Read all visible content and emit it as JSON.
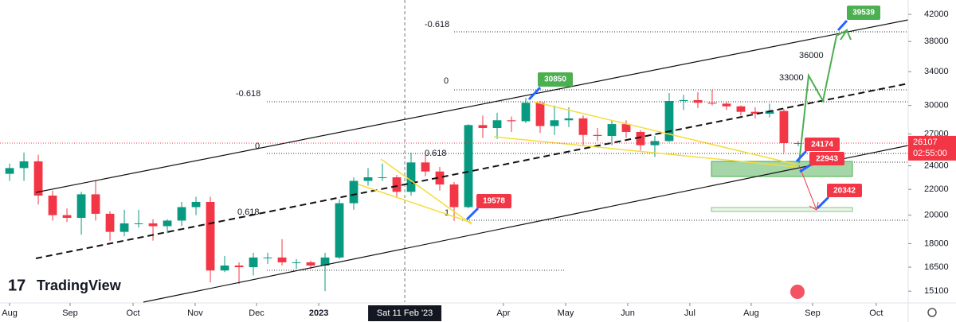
{
  "chart_data": {
    "type": "candlestick",
    "categories": [
      null,
      null,
      null,
      null,
      null,
      null,
      null,
      null,
      null,
      null,
      null,
      null,
      null,
      null,
      null,
      null,
      null,
      null,
      null,
      null,
      null,
      null,
      null,
      null,
      null,
      null,
      null,
      null,
      null,
      null,
      null,
      null,
      null,
      null,
      null,
      null,
      null,
      null,
      null,
      null,
      null,
      null,
      null,
      null,
      null,
      null,
      null,
      null,
      null,
      null,
      null,
      null,
      null,
      null,
      null,
      null
    ],
    "open": [
      23300,
      23800,
      24400,
      21500,
      20000,
      19800,
      21600,
      20100,
      18800,
      19400,
      19400,
      19200,
      19600,
      20600,
      21000,
      16300,
      16600,
      16500,
      17100,
      17100,
      16800,
      16800,
      16600,
      17100,
      20900,
      22700,
      23000,
      23000,
      21800,
      24300,
      23500,
      22400,
      20600,
      27900,
      27600,
      28400,
      28300,
      30300,
      27800,
      28400,
      28600,
      26900,
      26800,
      28000,
      27200,
      25900,
      26300,
      30500,
      30600,
      30300,
      30200,
      29900,
      29300,
      29100,
      29400,
      26100
    ],
    "high": [
      24200,
      25200,
      25000,
      21900,
      20500,
      21800,
      22700,
      20300,
      20400,
      20400,
      19700,
      19700,
      21000,
      21400,
      21400,
      17200,
      16800,
      17400,
      17400,
      18300,
      17000,
      16900,
      17400,
      21200,
      23000,
      23800,
      24200,
      23200,
      25200,
      25000,
      23900,
      22600,
      28000,
      28900,
      29200,
      28800,
      30850,
      30500,
      30000,
      29800,
      28900,
      27600,
      28400,
      28400,
      27400,
      26800,
      31400,
      31200,
      31500,
      31800,
      30400,
      30000,
      29800,
      30200,
      29600,
      26300
    ],
    "low": [
      22700,
      22700,
      20800,
      19600,
      19500,
      18600,
      19600,
      18200,
      18500,
      19100,
      18200,
      18700,
      19200,
      20000,
      15600,
      16200,
      15500,
      16000,
      16700,
      16600,
      16400,
      16400,
      15100,
      17000,
      20400,
      22300,
      22700,
      21400,
      21500,
      23100,
      21900,
      19578,
      20500,
      26600,
      26500,
      27200,
      28100,
      27100,
      26900,
      27700,
      25800,
      26300,
      25900,
      26600,
      25400,
      24800,
      26200,
      29500,
      29700,
      30000,
      29500,
      28900,
      28600,
      28700,
      25200,
      25800
    ],
    "close": [
      23800,
      24400,
      21500,
      20000,
      19800,
      21600,
      20100,
      18800,
      19400,
      19400,
      19200,
      19600,
      20600,
      21000,
      16300,
      16600,
      16500,
      17100,
      17100,
      16800,
      16800,
      16600,
      17100,
      20900,
      22700,
      23000,
      23000,
      21800,
      24300,
      23500,
      22400,
      20600,
      27900,
      27600,
      28400,
      28300,
      30300,
      27800,
      28400,
      28600,
      26900,
      26800,
      28000,
      27200,
      25900,
      26300,
      30500,
      30600,
      30300,
      30200,
      29900,
      29300,
      29100,
      29400,
      26100,
      26107
    ],
    "up_color": "#089981",
    "down_color": "#f23645",
    "log": true,
    "ylim": [
      14500,
      44300
    ],
    "yticks": [
      15100,
      16500,
      18000,
      20000,
      22000,
      24000,
      27000,
      30000,
      34000,
      38000,
      42000
    ],
    "xlim": [
      -0.67,
      62.67
    ],
    "xticks": [
      {
        "value": 0,
        "label": "Aug"
      },
      {
        "value": 4.22,
        "label": "Sep"
      },
      {
        "value": 8.61,
        "label": "Oct"
      },
      {
        "value": 12.94,
        "label": "Nov"
      },
      {
        "value": 17.22,
        "label": "Dec"
      },
      {
        "value": 21.56,
        "label": "2023"
      },
      {
        "value": 34.44,
        "label": "Apr"
      },
      {
        "value": 38.78,
        "label": "May"
      },
      {
        "value": 43.11,
        "label": "Jun"
      },
      {
        "value": 47.44,
        "label": "Jul"
      },
      {
        "value": 51.72,
        "label": "Aug"
      },
      {
        "value": 56,
        "label": "Sep"
      },
      {
        "value": 60.44,
        "label": "Oct"
      }
    ],
    "crosshair": {
      "value": 27.56,
      "label": "Sat 11 Feb '23"
    },
    "last_price": 26107,
    "countdown": "02:55:00",
    "annotations": [
      "39539",
      "30850",
      "24174",
      "22943",
      "20342",
      "19578",
      "36000",
      "33000"
    ],
    "fib_labels": [
      "-0.618",
      "0",
      "-0.618",
      "0",
      "0.618",
      "1",
      "0.618"
    ]
  },
  "logo": "TradingView"
}
